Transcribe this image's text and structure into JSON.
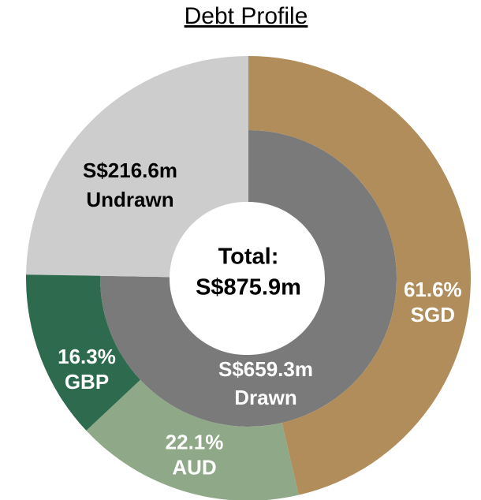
{
  "chart_data": {
    "type": "nested-donut",
    "title": "Debt Profile",
    "center_title": "Total:",
    "total": 875.9,
    "total_label": "S$875.9m",
    "inner": {
      "categories": [
        "Drawn",
        "Undrawn"
      ],
      "values": [
        659.3,
        216.6
      ],
      "value_labels": [
        "S$659.3m",
        "S$216.6m"
      ],
      "colors": [
        "#7a7a7a",
        "#cdcdcd"
      ]
    },
    "outer": {
      "categories": [
        "SGD",
        "AUD",
        "GBP"
      ],
      "values": [
        61.6,
        22.1,
        16.3
      ],
      "value_labels": [
        "61.6%",
        "22.1%",
        "16.3%"
      ],
      "colors": [
        "#b08d5a",
        "#8fa888",
        "#2e6b4e"
      ]
    }
  }
}
